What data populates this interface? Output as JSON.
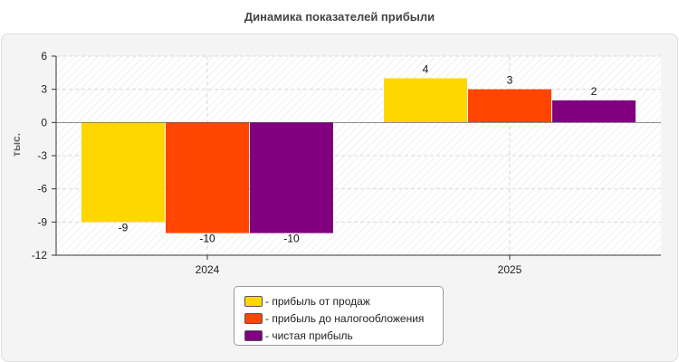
{
  "chart_data": {
    "type": "bar",
    "title": "Динамика показателей прибыли",
    "xlabel": "",
    "ylabel": "тыс.",
    "ylim": [
      -12,
      6
    ],
    "yticks": [
      -12,
      -9,
      -6,
      -3,
      0,
      3,
      6
    ],
    "categories": [
      "2024",
      "2025"
    ],
    "series": [
      {
        "name": "прибыль от продаж",
        "values": [
          -9,
          4
        ],
        "color": "#FFD700"
      },
      {
        "name": "прибыль до налогообложения",
        "values": [
          -10,
          3
        ],
        "color": "#FF4500"
      },
      {
        "name": "чистая прибыль",
        "values": [
          -10,
          2
        ],
        "color": "#800080"
      }
    ],
    "legend": {
      "position": "bottom",
      "items": [
        {
          "label": "- прибыль от продаж",
          "color": "#FFD700"
        },
        {
          "label": "- прибыль до налогообложения",
          "color": "#FF4500"
        },
        {
          "label": "- чистая прибыль",
          "color": "#800080"
        }
      ]
    },
    "grid": true
  }
}
